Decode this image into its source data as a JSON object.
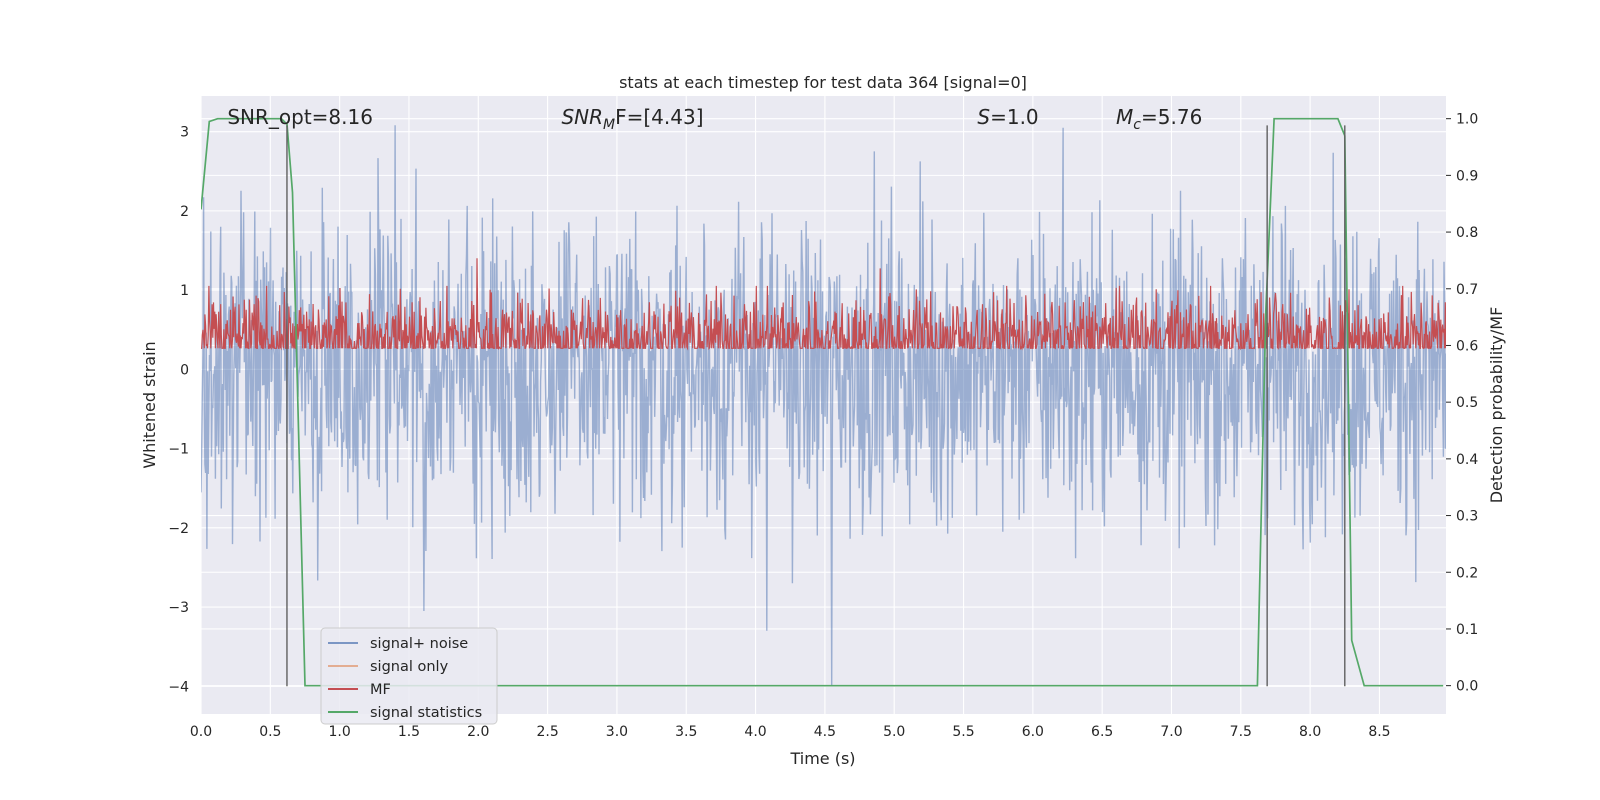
{
  "chart_data": {
    "type": "line",
    "title": "stats at each timestep for test data 364 [signal=0]",
    "xlabel": "Time (s)",
    "ylabel_left": "Whitened strain",
    "ylabel_right": "Detection probability/MF",
    "xlim": [
      0.0,
      8.98
    ],
    "ylim_left": [
      -4.35,
      3.45
    ],
    "ylim_right": [
      -0.05,
      1.04
    ],
    "x_ticks": [
      0.0,
      0.5,
      1.0,
      1.5,
      2.0,
      2.5,
      3.0,
      3.5,
      4.0,
      4.5,
      5.0,
      5.5,
      6.0,
      6.5,
      7.0,
      7.5,
      8.0,
      8.5
    ],
    "x_tick_labels": [
      "0.0",
      "0.5",
      "1.0",
      "1.5",
      "2.0",
      "2.5",
      "3.0",
      "3.5",
      "4.0",
      "4.5",
      "5.0",
      "5.5",
      "6.0",
      "6.5",
      "7.0",
      "7.5",
      "8.0",
      "8.5"
    ],
    "y_ticks_left": [
      -4,
      -3,
      -2,
      -1,
      0,
      1,
      2,
      3
    ],
    "y_tick_labels_left": [
      "−4",
      "−3",
      "−2",
      "−1",
      "0",
      "1",
      "2",
      "3"
    ],
    "y_ticks_right": [
      0.0,
      0.1,
      0.2,
      0.3,
      0.4,
      0.5,
      0.6,
      0.7,
      0.8,
      0.9,
      1.0
    ],
    "y_tick_labels_right": [
      "0.0",
      "0.1",
      "0.2",
      "0.3",
      "0.4",
      "0.5",
      "0.6",
      "0.7",
      "0.8",
      "0.9",
      "1.0"
    ],
    "grid": true,
    "legend_position": "lower-left",
    "annotations": [
      {
        "id": "snr-opt",
        "base": "SNR_opt=8.16",
        "italic": "",
        "sub": "",
        "rest": "",
        "x": 0.19
      },
      {
        "id": "snr-mf",
        "base": "",
        "italic": "SNR",
        "sub": "M",
        "rest": "F=[4.43]",
        "x": 2.6
      },
      {
        "id": "s-value",
        "base": "",
        "italic": "S",
        "sub": "",
        "rest": "=1.0",
        "x": 5.6
      },
      {
        "id": "mc-value",
        "base": "",
        "italic": "M",
        "sub": "c",
        "rest": "=5.76",
        "x": 6.6
      }
    ],
    "series": [
      {
        "name": "signal+ noise",
        "axis": "left",
        "color": "#4c72b0",
        "alpha": 0.5,
        "kind": "noise",
        "samples": 1900,
        "center": 0.0,
        "sigma": 0.95,
        "range": [
          -2.7,
          3.1
        ],
        "spikes": [
          [
            4.08,
            -3.3
          ],
          [
            4.55,
            -4.0
          ],
          [
            1.61,
            -3.05
          ],
          [
            1.4,
            3.08
          ],
          [
            6.22,
            3.05
          ]
        ]
      },
      {
        "name": "signal only",
        "axis": "left",
        "color": "#dd8452",
        "values": []
      },
      {
        "name": "MF",
        "axis": "right",
        "color": "#c44e52",
        "kind": "noise",
        "samples": 1900,
        "center": 0.61,
        "sigma": 0.04,
        "range": [
          0.595,
          0.705
        ],
        "spikes": [
          [
            1.99,
            0.754
          ],
          [
            4.9,
            0.736
          ]
        ]
      },
      {
        "name": "signal statistics",
        "axis": "right",
        "color": "#55a868",
        "x": [
          0.0,
          0.06,
          0.12,
          0.58,
          0.62,
          0.66,
          0.75,
          7.62,
          7.68,
          7.74,
          8.2,
          8.25,
          8.3,
          8.39,
          8.96
        ],
        "values": [
          0.84,
          0.995,
          1.0,
          1.0,
          0.99,
          0.87,
          0.0,
          0.0,
          0.66,
          1.0,
          1.0,
          0.97,
          0.08,
          0.0,
          0.0
        ]
      }
    ],
    "vertical_lines": [
      0.62,
      7.69,
      8.25
    ],
    "vertical_line_range": [
      -4.0,
      3.08
    ]
  },
  "style": {
    "plot_bg": "#eaeaf2",
    "grid_color": "#ffffff",
    "text_color": "#262626",
    "vline_color": "#606060"
  }
}
